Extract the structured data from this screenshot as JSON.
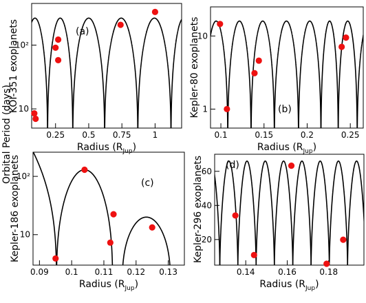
{
  "figure": {
    "shared_ylabel": "Orbital Period (days)"
  },
  "chart_data": [
    {
      "type": "scatter",
      "panel": "(a)",
      "ylabel": "KOI-351 exoplanets",
      "xlabel": "Radius (R",
      "xlabel_sub": "Jup",
      "xlabel_close": ")",
      "xlim": [
        0.07,
        1.2
      ],
      "ylim": [
        5,
        450
      ],
      "ylog": true,
      "xticks": [
        {
          "v": 0.25,
          "label": "0.25"
        },
        {
          "v": 0.5,
          "label": "0.5"
        },
        {
          "v": 0.75,
          "label": "0.75"
        },
        {
          "v": 1.0,
          "label": "1"
        }
      ],
      "yticks": [
        {
          "v": 10,
          "label": "10"
        },
        {
          "v": 100,
          "label": "10²"
        }
      ],
      "points": [
        {
          "x": 0.09,
          "y": 8.5
        },
        {
          "x": 0.1,
          "y": 7.0
        },
        {
          "x": 0.25,
          "y": 91
        },
        {
          "x": 0.27,
          "y": 122
        },
        {
          "x": 0.27,
          "y": 58
        },
        {
          "x": 0.74,
          "y": 208
        },
        {
          "x": 1.0,
          "y": 331
        }
      ],
      "curve": {
        "kind": "log_arches",
        "zeros": [
          0.19,
          0.38,
          0.62,
          0.87,
          1.12
        ],
        "peak": 265
      }
    },
    {
      "type": "scatter",
      "panel": "(b)",
      "ylabel": "Kepler-80 exoplanets",
      "xlabel": "Radius (R",
      "xlabel_sub": "Jup",
      "xlabel_close": ")",
      "xlim": [
        0.088,
        0.265
      ],
      "ylim": [
        0.55,
        25
      ],
      "ylog": true,
      "xticks": [
        {
          "v": 0.1,
          "label": "0.1"
        },
        {
          "v": 0.15,
          "label": "0.15"
        },
        {
          "v": 0.2,
          "label": "0.2"
        },
        {
          "v": 0.25,
          "label": "0.25"
        }
      ],
      "yticks": [
        {
          "v": 1,
          "label": "1"
        },
        {
          "v": 10,
          "label": "10"
        }
      ],
      "points": [
        {
          "x": 0.099,
          "y": 14.6
        },
        {
          "x": 0.107,
          "y": 1.0
        },
        {
          "x": 0.139,
          "y": 3.1
        },
        {
          "x": 0.144,
          "y": 4.6
        },
        {
          "x": 0.24,
          "y": 7.1
        },
        {
          "x": 0.245,
          "y": 9.5
        }
      ],
      "curve": {
        "kind": "log_arches",
        "zeros": [
          0.108,
          0.135,
          0.162,
          0.19,
          0.216,
          0.236,
          0.258
        ],
        "peak": 16
      }
    },
    {
      "type": "scatter",
      "panel": "(c)",
      "ylabel": "Kepler-186 exoplanets",
      "xlabel": "Radius (R",
      "xlabel_sub": "Jup",
      "xlabel_close": ")",
      "xlim": [
        0.088,
        0.135
      ],
      "ylim": [
        3,
        260
      ],
      "ylog": true,
      "xticks": [
        {
          "v": 0.09,
          "label": "0.09"
        },
        {
          "v": 0.1,
          "label": "0.1"
        },
        {
          "v": 0.11,
          "label": "0.11"
        },
        {
          "v": 0.12,
          "label": "0.12"
        },
        {
          "v": 0.13,
          "label": "0.13"
        }
      ],
      "yticks": [
        {
          "v": 10,
          "label": "10"
        },
        {
          "v": 100,
          "label": "10²"
        }
      ],
      "points": [
        {
          "x": 0.095,
          "y": 3.9
        },
        {
          "x": 0.104,
          "y": 129.9
        },
        {
          "x": 0.112,
          "y": 7.3
        },
        {
          "x": 0.113,
          "y": 22.4
        },
        {
          "x": 0.125,
          "y": 13.3
        }
      ],
      "curve": {
        "kind": "log_arches_multi",
        "segments": [
          {
            "a": 0.0,
            "b": 0.0953,
            "peak": 9000
          },
          {
            "a": 0.0953,
            "b": 0.1127,
            "peak": 130
          },
          {
            "a": 0.1157,
            "b": 0.1307,
            "peak": 20
          }
        ]
      }
    },
    {
      "type": "scatter",
      "panel": "(d)",
      "ylabel": "Kepler-296 exoplanets",
      "xlabel": "Radius (R",
      "xlabel_sub": "Jup",
      "xlabel_close": ")",
      "xlim": [
        0.125,
        0.197
      ],
      "ylim": [
        5,
        70
      ],
      "ylog": false,
      "xticks": [
        {
          "v": 0.14,
          "label": "0.14"
        },
        {
          "v": 0.16,
          "label": "0.16"
        },
        {
          "v": 0.18,
          "label": "0.18"
        }
      ],
      "yticks": [
        {
          "v": 20,
          "label": "20"
        },
        {
          "v": 40,
          "label": "40"
        },
        {
          "v": 60,
          "label": "60"
        }
      ],
      "points": [
        {
          "x": 0.135,
          "y": 34.1
        },
        {
          "x": 0.144,
          "y": 10.9
        },
        {
          "x": 0.162,
          "y": 63.3
        },
        {
          "x": 0.179,
          "y": 5.8
        },
        {
          "x": 0.187,
          "y": 19.9
        }
      ],
      "curve": {
        "kind": "lin_arches",
        "zeros": [
          0.1275,
          0.1362,
          0.145,
          0.1538,
          0.1627,
          0.1715,
          0.1803,
          0.1891
        ],
        "peak": 66
      }
    }
  ],
  "colors": {
    "axis": "#000000",
    "curve": "#000000",
    "point": "#ee1111"
  }
}
